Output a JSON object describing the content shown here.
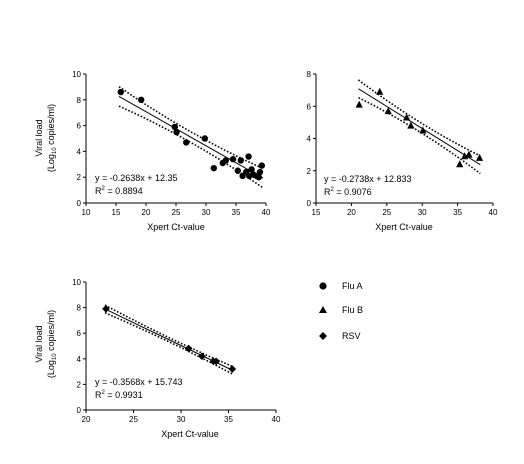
{
  "chart_data": [
    {
      "type": "scatter",
      "series_name": "Flu A",
      "xlabel": "Xpert Ct-value",
      "ylabel_main": "Viral load",
      "ylabel_sub_pre": "(Log",
      "ylabel_sub_sub": "10",
      "ylabel_sub_post": " copies/ml)",
      "xlim": [
        10,
        40
      ],
      "ylim": [
        0,
        10
      ],
      "x_ticks": [
        10,
        15,
        20,
        25,
        30,
        35,
        40
      ],
      "y_ticks": [
        0,
        2,
        4,
        6,
        8,
        10
      ],
      "equation": "y = -0.2638x + 12.35",
      "r2_label": "R",
      "r2_sup": "2",
      "r2_value": " = 0.8894",
      "slope": -0.2638,
      "intercept": 12.35,
      "band": 0.75,
      "fit_range": [
        15.5,
        39.5
      ],
      "points": [
        [
          15.8,
          8.6
        ],
        [
          19.2,
          8.0
        ],
        [
          24.8,
          5.9
        ],
        [
          25.1,
          5.5
        ],
        [
          26.7,
          4.7
        ],
        [
          29.8,
          5.0
        ],
        [
          31.3,
          2.7
        ],
        [
          32.8,
          3.1
        ],
        [
          33.3,
          3.3
        ],
        [
          34.5,
          3.4
        ],
        [
          35.3,
          2.5
        ],
        [
          35.8,
          3.3
        ],
        [
          36.1,
          2.1
        ],
        [
          36.7,
          2.4
        ],
        [
          37.1,
          3.6
        ],
        [
          37.2,
          2.1
        ],
        [
          37.6,
          2.6
        ],
        [
          37.9,
          2.2
        ],
        [
          38.4,
          2.1
        ],
        [
          38.8,
          2.0
        ],
        [
          39.0,
          2.4
        ],
        [
          39.3,
          2.9
        ]
      ]
    },
    {
      "type": "scatter",
      "series_name": "Flu B",
      "xlabel": "Xpert Ct-value",
      "xlim": [
        15,
        40
      ],
      "ylim": [
        0,
        8
      ],
      "x_ticks": [
        15,
        20,
        25,
        30,
        35,
        40
      ],
      "y_ticks": [
        0,
        2,
        4,
        6,
        8
      ],
      "equation": "y = -0.2738x + 12.833",
      "r2_label": "R",
      "r2_sup": "2",
      "r2_value": " = 0.9076",
      "slope": -0.2738,
      "intercept": 12.833,
      "band": 0.55,
      "fit_range": [
        21,
        38.2
      ],
      "points": [
        [
          21.1,
          6.1
        ],
        [
          24.0,
          6.9
        ],
        [
          25.2,
          5.7
        ],
        [
          27.8,
          5.3
        ],
        [
          28.4,
          4.8
        ],
        [
          30.1,
          4.5
        ],
        [
          35.3,
          2.4
        ],
        [
          36.0,
          2.9
        ],
        [
          36.6,
          3.0
        ],
        [
          38.1,
          2.8
        ]
      ]
    },
    {
      "type": "scatter",
      "series_name": "RSV",
      "xlabel": "Xpert Ct-value",
      "ylabel_main": "Viral load",
      "ylabel_sub_pre": "(Log",
      "ylabel_sub_sub": "10",
      "ylabel_sub_post": " copies/ml)",
      "xlim": [
        20,
        40
      ],
      "ylim": [
        0,
        10
      ],
      "x_ticks": [
        20,
        25,
        30,
        35,
        40
      ],
      "y_ticks": [
        0,
        2,
        4,
        6,
        8,
        10
      ],
      "equation": "y = -0.3568x + 15.743",
      "r2_label": "R",
      "r2_sup": "2",
      "r2_value": " = 0.9931",
      "slope": -0.3568,
      "intercept": 15.743,
      "band": 0.3,
      "fit_range": [
        22,
        35.5
      ],
      "points": [
        [
          22.1,
          7.9
        ],
        [
          30.8,
          4.8
        ],
        [
          32.2,
          4.2
        ],
        [
          33.4,
          3.8
        ],
        [
          33.7,
          3.8
        ],
        [
          35.4,
          3.2
        ]
      ]
    }
  ],
  "legend": [
    {
      "label": "Flu A",
      "marker": "circle"
    },
    {
      "label": "Flu B",
      "marker": "triangle"
    },
    {
      "label": "RSV",
      "marker": "diamond"
    }
  ]
}
